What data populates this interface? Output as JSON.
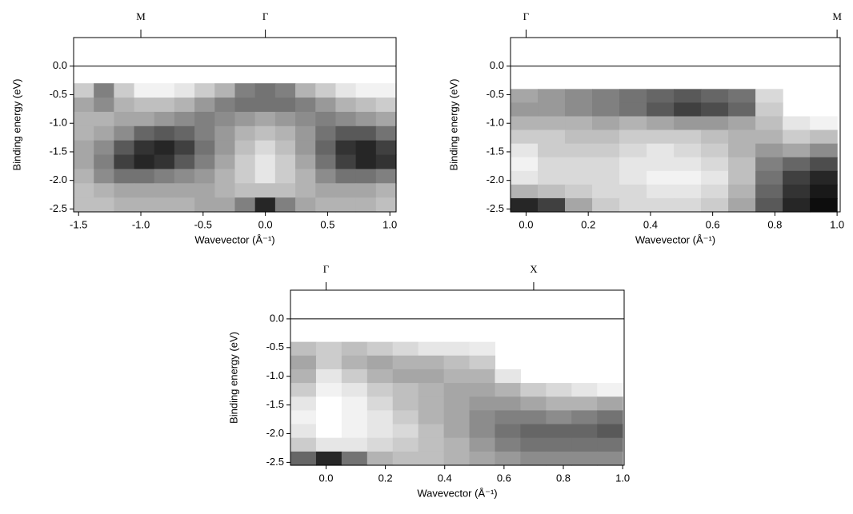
{
  "chart_data": [
    {
      "type": "heatmap",
      "xlabel": "Wavevector (Å⁻¹)",
      "ylabel": "Binding energy (eV)",
      "xlim": [
        -1.54,
        1.05
      ],
      "ylim": [
        -2.55,
        0.5
      ],
      "xticks": [
        -1.5,
        {
          "value": -1,
          "label": "-1.0"
        },
        -0.5,
        {
          "value": 0,
          "label": "0.0"
        },
        0.5,
        {
          "value": 1,
          "label": "1.0"
        }
      ],
      "yticks": [
        {
          "value": 0,
          "label": "0.0"
        },
        -0.5,
        {
          "value": -1,
          "label": "-1.0"
        },
        -1.5,
        {
          "value": -2,
          "label": "-2.0"
        },
        -2.5
      ],
      "top_ticks": [
        {
          "value": -1,
          "label": "M"
        },
        {
          "value": 0,
          "label": "Γ"
        }
      ],
      "hlines": [
        0
      ],
      "x_extent": [
        -1.54,
        1.05
      ],
      "y_extent": [
        -0.3,
        -2.55
      ],
      "z": [
        [
          0.2,
          0.5,
          0.2,
          0.05,
          0.05,
          0.1,
          0.2,
          0.3,
          0.5,
          0.55,
          0.5,
          0.3,
          0.2,
          0.1,
          0.05,
          0.05
        ],
        [
          0.35,
          0.45,
          0.3,
          0.25,
          0.25,
          0.3,
          0.4,
          0.5,
          0.55,
          0.55,
          0.55,
          0.5,
          0.4,
          0.3,
          0.25,
          0.2
        ],
        [
          0.3,
          0.3,
          0.35,
          0.35,
          0.4,
          0.45,
          0.5,
          0.45,
          0.4,
          0.35,
          0.4,
          0.45,
          0.5,
          0.45,
          0.4,
          0.35
        ],
        [
          0.3,
          0.35,
          0.45,
          0.6,
          0.65,
          0.6,
          0.5,
          0.4,
          0.3,
          0.25,
          0.3,
          0.4,
          0.55,
          0.65,
          0.65,
          0.55
        ],
        [
          0.35,
          0.45,
          0.65,
          0.8,
          0.85,
          0.75,
          0.55,
          0.4,
          0.25,
          0.15,
          0.25,
          0.4,
          0.6,
          0.8,
          0.85,
          0.75
        ],
        [
          0.35,
          0.5,
          0.75,
          0.85,
          0.8,
          0.65,
          0.5,
          0.35,
          0.2,
          0.1,
          0.2,
          0.35,
          0.55,
          0.75,
          0.85,
          0.8
        ],
        [
          0.3,
          0.45,
          0.55,
          0.55,
          0.5,
          0.45,
          0.4,
          0.3,
          0.2,
          0.1,
          0.2,
          0.3,
          0.45,
          0.55,
          0.55,
          0.5
        ],
        [
          0.25,
          0.3,
          0.35,
          0.35,
          0.35,
          0.35,
          0.35,
          0.3,
          0.25,
          0.25,
          0.25,
          0.3,
          0.35,
          0.35,
          0.35,
          0.3
        ],
        [
          0.25,
          0.25,
          0.3,
          0.3,
          0.3,
          0.3,
          0.35,
          0.35,
          0.5,
          0.85,
          0.5,
          0.35,
          0.3,
          0.3,
          0.3,
          0.25
        ]
      ]
    },
    {
      "type": "heatmap",
      "xlabel": "Wavevector (Å⁻¹)",
      "ylabel": "Binding energy (eV)",
      "xlim": [
        -0.05,
        1.01
      ],
      "ylim": [
        -2.55,
        0.5
      ],
      "xticks": [
        {
          "value": 0,
          "label": "0.0"
        },
        0.2,
        0.4,
        0.6,
        0.8,
        {
          "value": 1,
          "label": "1.0"
        }
      ],
      "yticks": [
        {
          "value": 0,
          "label": "0.0"
        },
        -0.5,
        {
          "value": -1,
          "label": "-1.0"
        },
        -1.5,
        {
          "value": -2,
          "label": "-2.0"
        },
        -2.5
      ],
      "top_ticks": [
        {
          "value": 0,
          "label": "Γ"
        },
        {
          "value": 1,
          "label": "M"
        }
      ],
      "hlines": [
        0
      ],
      "x_extent": [
        -0.05,
        1.0
      ],
      "y_extent": [
        -0.4,
        -2.55
      ],
      "z": [
        [
          0.35,
          0.4,
          0.45,
          0.5,
          0.55,
          0.6,
          0.65,
          0.6,
          0.55,
          0.15,
          null,
          null
        ],
        [
          0.4,
          0.4,
          0.45,
          0.5,
          0.55,
          0.65,
          0.75,
          0.7,
          0.6,
          0.2,
          null,
          null
        ],
        [
          0.3,
          0.3,
          0.3,
          0.35,
          0.3,
          0.35,
          0.4,
          0.4,
          0.35,
          0.25,
          0.1,
          0.05
        ],
        [
          0.2,
          0.2,
          0.25,
          0.25,
          0.2,
          0.2,
          0.2,
          0.25,
          0.3,
          0.3,
          0.2,
          0.25
        ],
        [
          0.1,
          0.2,
          0.2,
          0.2,
          0.15,
          0.1,
          0.15,
          0.2,
          0.3,
          0.4,
          0.35,
          0.45
        ],
        [
          0.05,
          0.15,
          0.15,
          0.15,
          0.1,
          0.1,
          0.1,
          0.15,
          0.25,
          0.5,
          0.6,
          0.7
        ],
        [
          0.1,
          0.15,
          0.15,
          0.15,
          0.1,
          0.05,
          0.05,
          0.1,
          0.25,
          0.55,
          0.75,
          0.85
        ],
        [
          0.3,
          0.25,
          0.2,
          0.15,
          0.15,
          0.1,
          0.1,
          0.15,
          0.3,
          0.6,
          0.8,
          0.9
        ],
        [
          0.85,
          0.75,
          0.35,
          0.2,
          0.15,
          0.15,
          0.15,
          0.2,
          0.35,
          0.65,
          0.85,
          0.95
        ]
      ]
    },
    {
      "type": "heatmap",
      "xlabel": "Wavevector (Å⁻¹)",
      "ylabel": "Binding energy (eV)",
      "xlim": [
        -0.12,
        1.005
      ],
      "ylim": [
        -2.55,
        0.5
      ],
      "xticks": [
        {
          "value": 0,
          "label": "0.0"
        },
        0.2,
        0.4,
        0.6,
        0.8,
        {
          "value": 1,
          "label": "1.0"
        }
      ],
      "yticks": [
        {
          "value": 0,
          "label": "0.0"
        },
        -0.5,
        {
          "value": -1,
          "label": "-1.0"
        },
        -1.5,
        {
          "value": -2,
          "label": "-2.0"
        },
        -2.5
      ],
      "top_ticks": [
        {
          "value": 0,
          "label": "Γ"
        },
        {
          "value": 0.7,
          "label": "X"
        }
      ],
      "hlines": [
        0
      ],
      "x_extent": [
        -0.12,
        1.0
      ],
      "y_extent": [
        -0.4,
        -2.55
      ],
      "z": [
        [
          0.25,
          0.2,
          0.25,
          0.2,
          0.15,
          0.1,
          0.1,
          0.08,
          null,
          null,
          null,
          null,
          null
        ],
        [
          0.35,
          0.2,
          0.3,
          0.35,
          0.3,
          0.3,
          0.25,
          0.2,
          null,
          null,
          null,
          null,
          null
        ],
        [
          0.3,
          0.1,
          0.2,
          0.3,
          0.35,
          0.35,
          0.3,
          0.3,
          0.1,
          null,
          null,
          null,
          null
        ],
        [
          0.2,
          0.05,
          0.1,
          0.2,
          0.25,
          0.3,
          0.35,
          0.35,
          0.3,
          0.2,
          0.15,
          0.1,
          0.05
        ],
        [
          0.1,
          0.0,
          0.05,
          0.15,
          0.25,
          0.3,
          0.35,
          0.4,
          0.4,
          0.35,
          0.3,
          0.3,
          0.35
        ],
        [
          0.05,
          0.0,
          0.05,
          0.1,
          0.2,
          0.3,
          0.35,
          0.45,
          0.5,
          0.5,
          0.45,
          0.5,
          0.55
        ],
        [
          0.1,
          0.0,
          0.05,
          0.1,
          0.15,
          0.25,
          0.35,
          0.45,
          0.55,
          0.6,
          0.6,
          0.6,
          0.65
        ],
        [
          0.2,
          0.1,
          0.1,
          0.15,
          0.2,
          0.25,
          0.3,
          0.4,
          0.5,
          0.55,
          0.55,
          0.55,
          0.55
        ],
        [
          0.6,
          0.85,
          0.55,
          0.3,
          0.25,
          0.25,
          0.3,
          0.35,
          0.4,
          0.45,
          0.45,
          0.45,
          0.45
        ]
      ]
    }
  ]
}
